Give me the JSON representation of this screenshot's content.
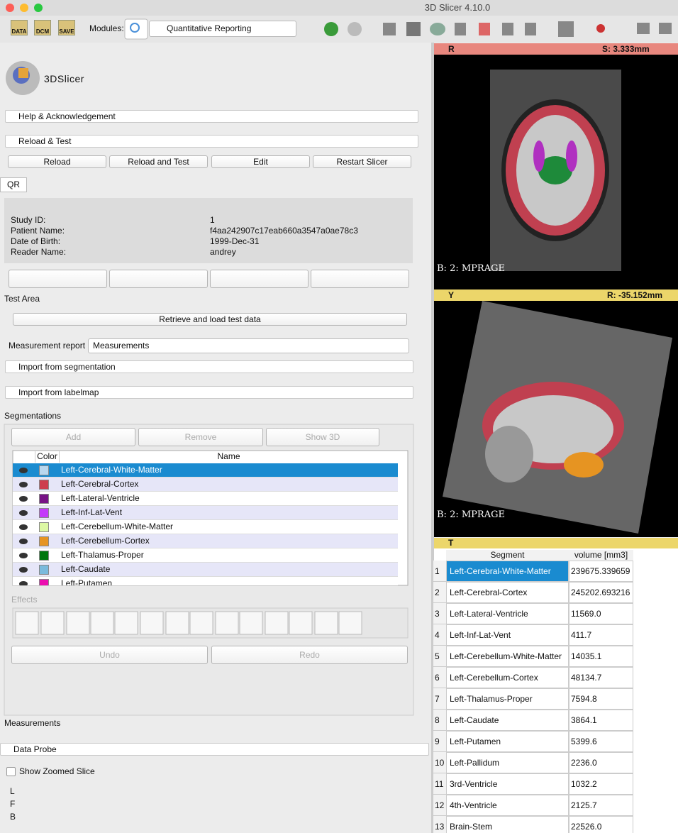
{
  "window": {
    "title": "3D Slicer 4.10.0"
  },
  "toolbar": {
    "icons": [
      "DATA",
      "DCM",
      "SAVE"
    ],
    "modules_label": "Modules:",
    "module": "Quantitative Reporting"
  },
  "logo": "3DSlicer",
  "sections": {
    "help": "Help & Acknowledgement",
    "reload_test": "Reload & Test",
    "reload_buttons": [
      "Reload",
      "Reload and Test",
      "Edit",
      "Restart Slicer"
    ]
  },
  "qr": {
    "tab": "QR",
    "fields": [
      [
        "Study ID:",
        "1"
      ],
      [
        "Patient Name:",
        "f4aa242907c17eab660a3547a0ae78c3"
      ],
      [
        "Date of Birth:",
        "1999-Dec-31"
      ],
      [
        "Reader Name:",
        "andrey"
      ]
    ]
  },
  "test_area": {
    "label": "Test Area",
    "button": "Retrieve and load test data"
  },
  "measurement_report": {
    "label": "Measurement report",
    "value": "Measurements"
  },
  "imports": [
    "Import from segmentation",
    "Import from labelmap"
  ],
  "segmentations": {
    "label": "Segmentations",
    "buttons": [
      "Add",
      "Remove",
      "Show 3D"
    ],
    "columns": [
      "Color",
      "Name"
    ],
    "rows": [
      {
        "name": "Left-Cerebral-White-Matter",
        "color": "#b9d7ee"
      },
      {
        "name": "Left-Cerebral-Cortex",
        "color": "#cd3e4e"
      },
      {
        "name": "Left-Lateral-Ventricle",
        "color": "#781286"
      },
      {
        "name": "Left-Inf-Lat-Vent",
        "color": "#c43afa"
      },
      {
        "name": "Left-Cerebellum-White-Matter",
        "color": "#dcf8a4"
      },
      {
        "name": "Left-Cerebellum-Cortex",
        "color": "#e69422"
      },
      {
        "name": "Left-Thalamus-Proper",
        "color": "#00760e"
      },
      {
        "name": "Left-Caudate",
        "color": "#7abadc"
      },
      {
        "name": "Left-Putamen",
        "color": "#ec0db0"
      }
    ]
  },
  "effects": {
    "label": "Effects",
    "undo": "Undo",
    "redo": "Redo"
  },
  "measurements": {
    "label": "Measurements"
  },
  "data_probe": {
    "label": "Data Probe",
    "checkbox": "Show Zoomed Slice",
    "coords": [
      "L",
      "F",
      "B"
    ]
  },
  "views": [
    {
      "name": "R",
      "offset": "S: 3.333mm",
      "color": "#e8877e",
      "label": "B: 2: MPRAGE"
    },
    {
      "name": "Y",
      "offset": "R: -35.152mm",
      "color": "#ecd66a",
      "label": "B: 2: MPRAGE"
    }
  ],
  "table_view": {
    "name": "T",
    "columns": [
      "Segment",
      "volume [mm3]"
    ],
    "rows": [
      [
        "1",
        "Left-Cerebral-White-Matter",
        "239675.339659"
      ],
      [
        "2",
        "Left-Cerebral-Cortex",
        "245202.693216"
      ],
      [
        "3",
        "Left-Lateral-Ventricle",
        "11569.0"
      ],
      [
        "4",
        "Left-Inf-Lat-Vent",
        "411.7"
      ],
      [
        "5",
        "Left-Cerebellum-White-Matter",
        "14035.1"
      ],
      [
        "6",
        "Left-Cerebellum-Cortex",
        "48134.7"
      ],
      [
        "7",
        "Left-Thalamus-Proper",
        "7594.8"
      ],
      [
        "8",
        "Left-Caudate",
        "3864.1"
      ],
      [
        "9",
        "Left-Putamen",
        "5399.6"
      ],
      [
        "10",
        "Left-Pallidum",
        "2236.0"
      ],
      [
        "11",
        "3rd-Ventricle",
        "1032.2"
      ],
      [
        "12",
        "4th-Ventricle",
        "2125.7"
      ],
      [
        "13",
        "Brain-Stem",
        "22526.0"
      ]
    ]
  }
}
